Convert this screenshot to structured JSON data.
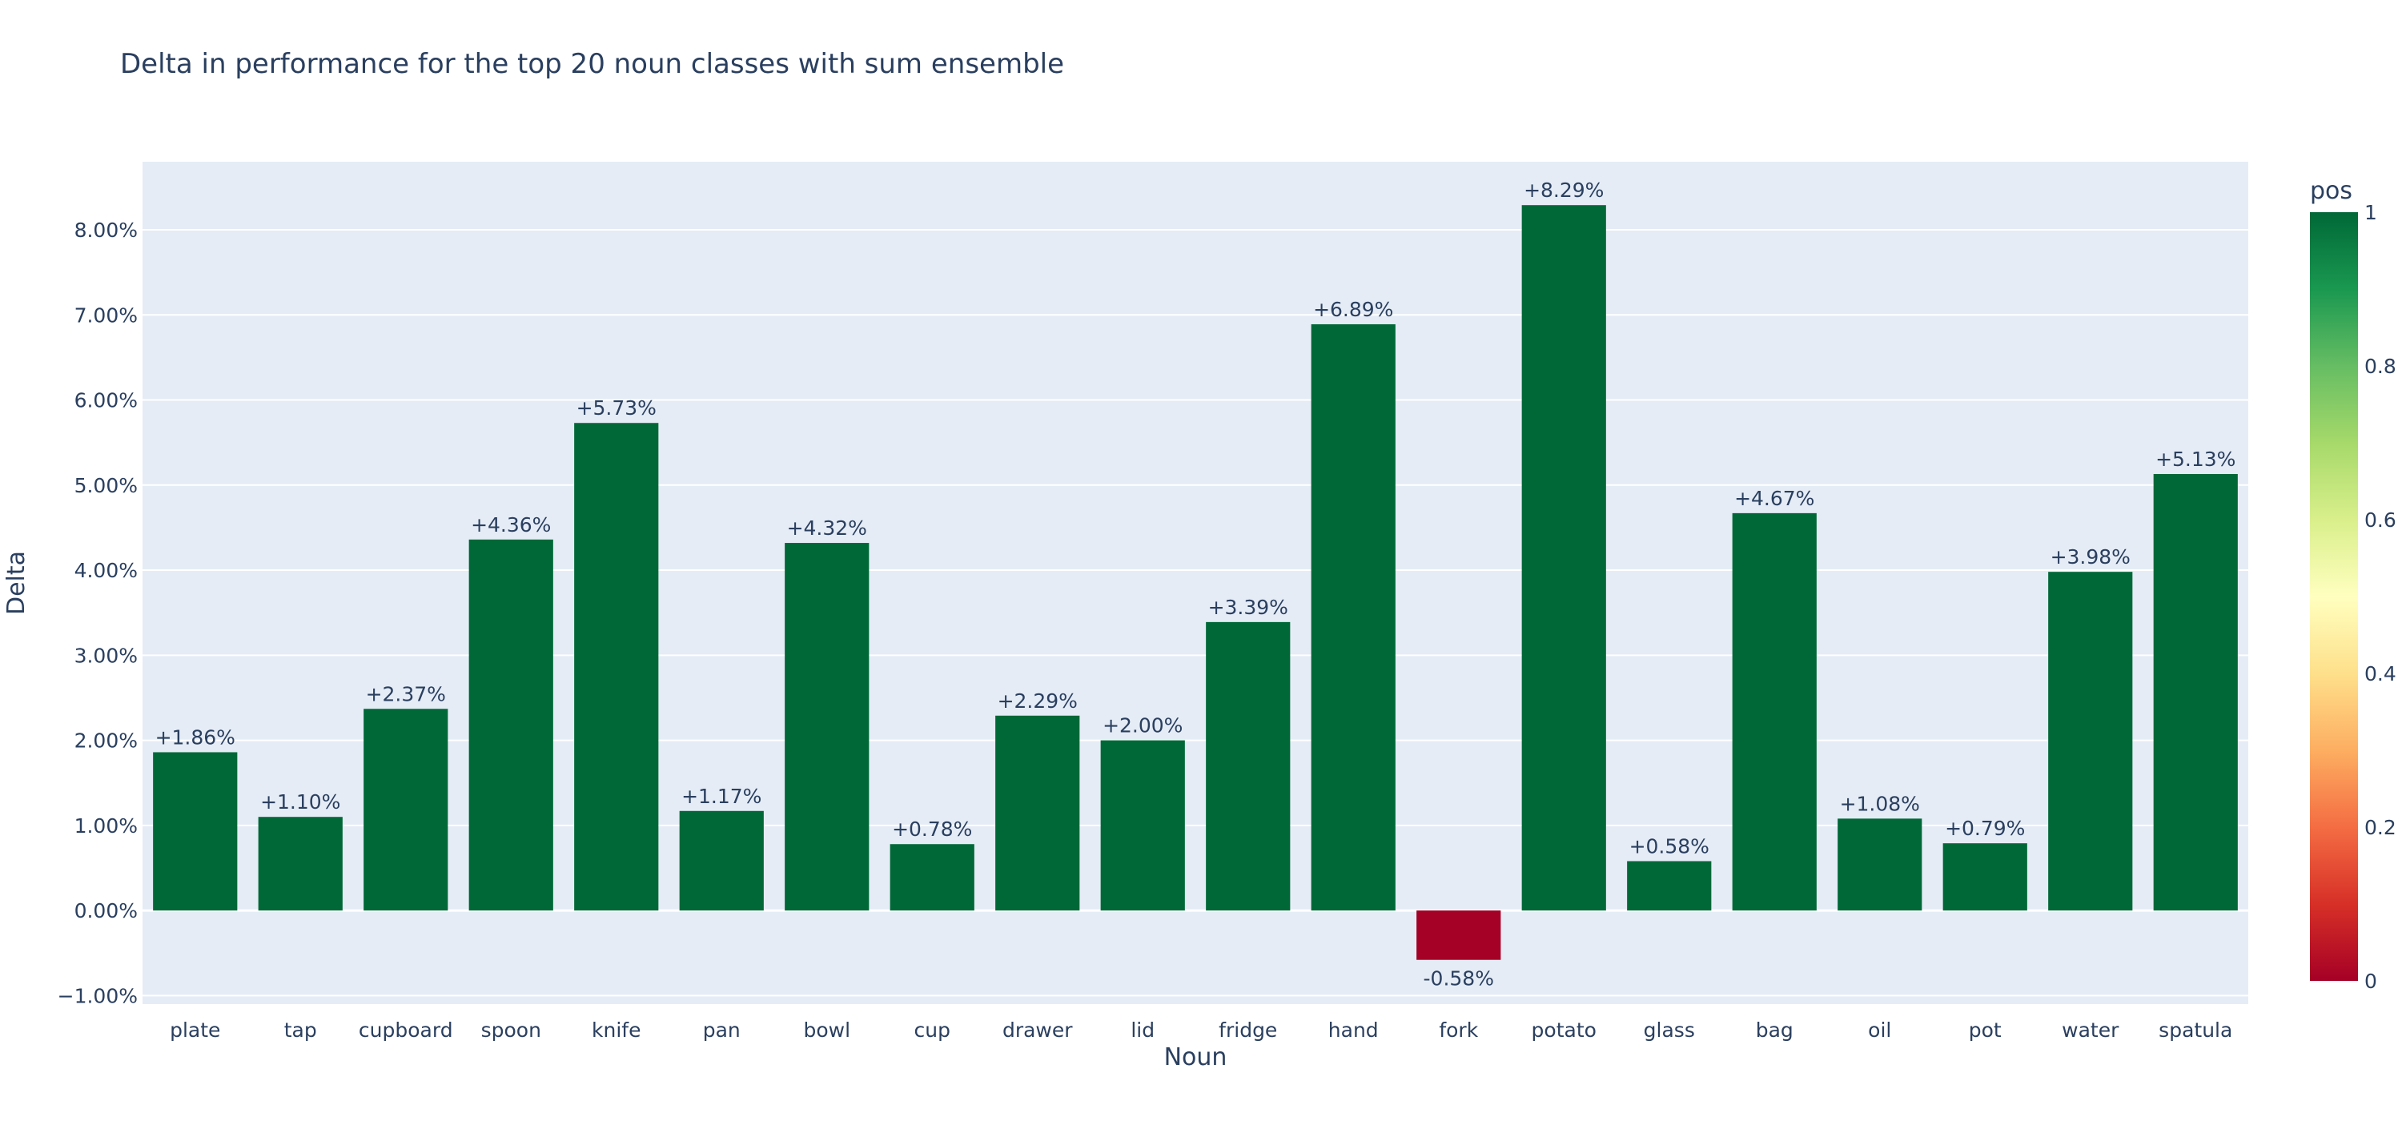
{
  "title": "Delta in performance for the top 20 noun classes with sum ensemble",
  "chart_data": {
    "type": "bar",
    "title": "Delta in performance for the top 20 noun classes with sum ensemble",
    "xlabel": "Noun",
    "ylabel": "Delta",
    "categories": [
      "plate",
      "tap",
      "cupboard",
      "spoon",
      "knife",
      "pan",
      "bowl",
      "cup",
      "drawer",
      "lid",
      "fridge",
      "hand",
      "fork",
      "potato",
      "glass",
      "bag",
      "oil",
      "pot",
      "water",
      "spatula"
    ],
    "values": [
      1.86,
      1.1,
      2.37,
      4.36,
      5.73,
      1.17,
      4.32,
      0.78,
      2.29,
      2.0,
      3.39,
      6.89,
      -0.58,
      8.29,
      0.58,
      4.67,
      1.08,
      0.79,
      3.98,
      5.13
    ],
    "bar_labels": [
      "+1.86%",
      "+1.10%",
      "+2.37%",
      "+4.36%",
      "+5.73%",
      "+1.17%",
      "+4.32%",
      "+0.78%",
      "+2.29%",
      "+2.00%",
      "+3.39%",
      "+6.89%",
      "-0.58%",
      "+8.29%",
      "+0.58%",
      "+4.67%",
      "+1.08%",
      "+0.79%",
      "+3.98%",
      "+5.13%"
    ],
    "pos": [
      1,
      1,
      1,
      1,
      1,
      1,
      1,
      1,
      1,
      1,
      1,
      1,
      0,
      1,
      1,
      1,
      1,
      1,
      1,
      1
    ],
    "yticks": [
      -1,
      0,
      1,
      2,
      3,
      4,
      5,
      6,
      7,
      8
    ],
    "ytick_labels": [
      "−1.00%",
      "0.00%",
      "1.00%",
      "2.00%",
      "3.00%",
      "4.00%",
      "5.00%",
      "6.00%",
      "7.00%",
      "8.00%"
    ],
    "ylim": [
      -1.1,
      8.8
    ],
    "grid": true,
    "colorbar": {
      "title": "pos",
      "ticks": [
        "0",
        "0.2",
        "0.4",
        "0.6",
        "0.8",
        "1"
      ],
      "colorscale": [
        "#a50026",
        "#d73027",
        "#f46d43",
        "#fdae61",
        "#fee08b",
        "#ffffbf",
        "#d9ef8b",
        "#a6d96a",
        "#66bd63",
        "#1a9850",
        "#006837"
      ]
    },
    "colors": {
      "positive": "#006837",
      "negative": "#a50026",
      "plot_bg": "#e5ecf6",
      "grid": "#ffffff",
      "text": "#2a3f5f"
    }
  }
}
